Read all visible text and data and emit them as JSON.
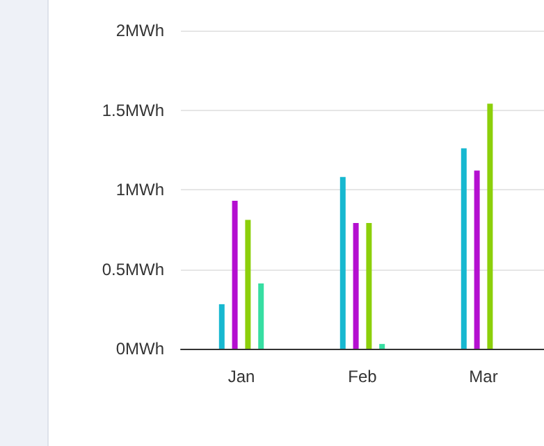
{
  "chart_data": {
    "type": "bar",
    "categories": [
      "Jan",
      "Feb",
      "Mar"
    ],
    "series": [
      {
        "color": "#17b8d0",
        "values": [
          0.28,
          1.08,
          1.26
        ]
      },
      {
        "color": "#b40fd0",
        "values": [
          0.93,
          0.79,
          1.12
        ]
      },
      {
        "color": "#8ccf0a",
        "values": [
          0.81,
          0.79,
          1.54
        ]
      },
      {
        "color": "#37dea2",
        "values": [
          0.41,
          0.03,
          null
        ]
      }
    ],
    "ylim": [
      0,
      2
    ],
    "yticks": [
      {
        "value": 0,
        "label": "0MWh"
      },
      {
        "value": 0.5,
        "label": "0.5MWh"
      },
      {
        "value": 1,
        "label": "1MWh"
      },
      {
        "value": 1.5,
        "label": "1.5MWh"
      },
      {
        "value": 2,
        "label": "2MWh"
      }
    ],
    "grid": "y"
  }
}
